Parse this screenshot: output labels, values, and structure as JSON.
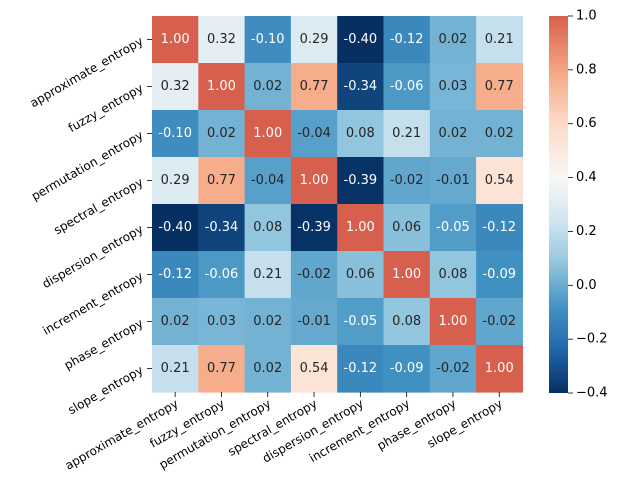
{
  "chart_data": {
    "type": "heatmap",
    "title": "",
    "xlabel": "",
    "ylabel": "",
    "rows": [
      "approximate_entropy",
      "fuzzy_entropy",
      "permutation_entropy",
      "spectral_entropy",
      "dispersion_entropy",
      "increment_entropy",
      "phase_entropy",
      "slope_entropy"
    ],
    "columns": [
      "approximate_entropy",
      "fuzzy_entropy",
      "permutation_entropy",
      "spectral_entropy",
      "dispersion_entropy",
      "increment_entropy",
      "phase_entropy",
      "slope_entropy"
    ],
    "values": [
      [
        1.0,
        0.32,
        -0.1,
        0.29,
        -0.4,
        -0.12,
        0.02,
        0.21
      ],
      [
        0.32,
        1.0,
        0.02,
        0.77,
        -0.34,
        -0.06,
        0.03,
        0.77
      ],
      [
        -0.1,
        0.02,
        1.0,
        -0.04,
        0.08,
        0.21,
        0.02,
        0.02
      ],
      [
        0.29,
        0.77,
        -0.04,
        1.0,
        -0.39,
        -0.02,
        -0.01,
        0.54
      ],
      [
        -0.4,
        -0.34,
        0.08,
        -0.39,
        1.0,
        0.06,
        -0.05,
        -0.12
      ],
      [
        -0.12,
        -0.06,
        0.21,
        -0.02,
        0.06,
        1.0,
        0.08,
        -0.09
      ],
      [
        0.02,
        0.03,
        0.02,
        -0.01,
        -0.05,
        0.08,
        1.0,
        -0.02
      ],
      [
        0.21,
        0.77,
        0.02,
        0.54,
        -0.12,
        -0.09,
        -0.02,
        1.0
      ]
    ],
    "annotation_format": "2 decimals",
    "colormap": "RdBu_r (diverging, centered)",
    "color_stops": [
      "#053061",
      "#2166ac",
      "#4393c3",
      "#92c5de",
      "#d1e5f0",
      "#f7f7f7",
      "#fddbc7",
      "#f4a582",
      "#d6604d"
    ],
    "vmin": -0.4,
    "vmax": 1.0,
    "vcenter": 0.4,
    "colorbar": {
      "position": "right",
      "ticks": [
        -0.4,
        -0.2,
        0.0,
        0.2,
        0.4,
        0.6,
        0.8,
        1.0
      ],
      "tick_labels": [
        "−0.4",
        "−0.2",
        "0.0",
        "0.2",
        "0.4",
        "0.6",
        "0.8",
        "1.0"
      ]
    }
  }
}
